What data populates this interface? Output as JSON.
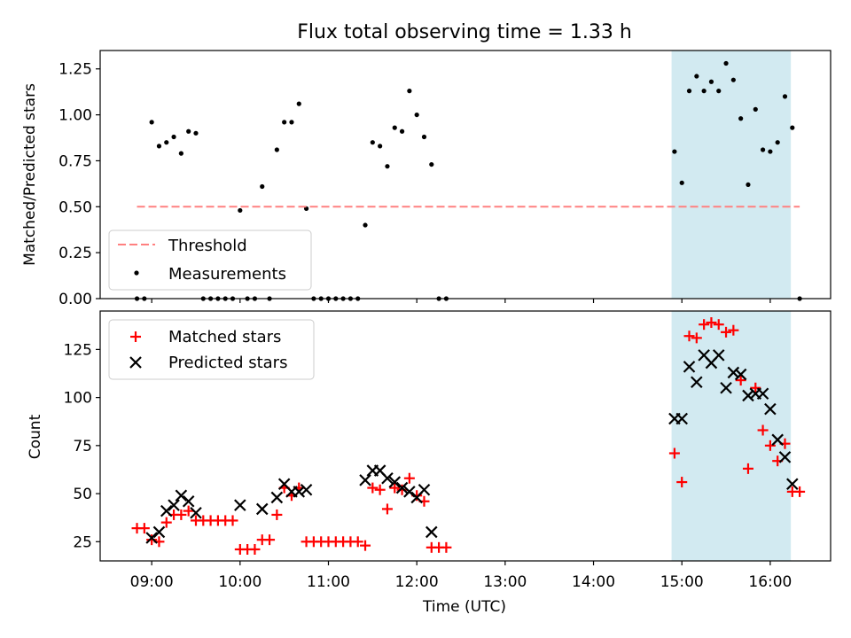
{
  "chart_data": [
    {
      "type": "scatter",
      "title": "Flux total observing time = 1.33 h",
      "xlabel": "",
      "ylabel": "Matched/Predicted stars",
      "ylim": [
        0,
        1.35
      ],
      "xlim": [
        "08:25",
        "16:41"
      ],
      "yticks": [
        "0.00",
        "0.25",
        "0.50",
        "0.75",
        "1.00",
        "1.25"
      ],
      "ytick_values": [
        0,
        0.25,
        0.5,
        0.75,
        1.0,
        1.25
      ],
      "shaded_region": {
        "x_start": "14:53",
        "x_end": "16:14",
        "color": "#add8e6"
      },
      "threshold": {
        "name": "Threshold",
        "y": 0.5,
        "x_start": "08:50",
        "x_end": "16:20",
        "color": "#ff8080"
      },
      "legend": {
        "placement": "lower-left",
        "entries": [
          "Threshold",
          "Measurements"
        ]
      },
      "series": [
        {
          "name": "Measurements",
          "color": "#000000",
          "marker": "dot",
          "points": [
            [
              "08:50",
              0
            ],
            [
              "08:55",
              0
            ],
            [
              "09:00",
              0.96
            ],
            [
              "09:05",
              0.83
            ],
            [
              "09:10",
              0.85
            ],
            [
              "09:15",
              0.88
            ],
            [
              "09:20",
              0.79
            ],
            [
              "09:25",
              0.91
            ],
            [
              "09:30",
              0.9
            ],
            [
              "09:35",
              0
            ],
            [
              "09:40",
              0
            ],
            [
              "09:45",
              0
            ],
            [
              "09:50",
              0
            ],
            [
              "09:55",
              0
            ],
            [
              "10:00",
              0.48
            ],
            [
              "10:05",
              0
            ],
            [
              "10:10",
              0
            ],
            [
              "10:15",
              0.61
            ],
            [
              "10:20",
              0
            ],
            [
              "10:25",
              0.81
            ],
            [
              "10:30",
              0.96
            ],
            [
              "10:35",
              0.96
            ],
            [
              "10:40",
              1.06
            ],
            [
              "10:45",
              0.49
            ],
            [
              "10:50",
              0
            ],
            [
              "10:55",
              0
            ],
            [
              "11:00",
              0
            ],
            [
              "11:05",
              0
            ],
            [
              "11:10",
              0
            ],
            [
              "11:15",
              0
            ],
            [
              "11:20",
              0
            ],
            [
              "11:25",
              0.4
            ],
            [
              "11:30",
              0.85
            ],
            [
              "11:35",
              0.83
            ],
            [
              "11:40",
              0.72
            ],
            [
              "11:45",
              0.93
            ],
            [
              "11:50",
              0.91
            ],
            [
              "11:55",
              1.13
            ],
            [
              "12:00",
              1.0
            ],
            [
              "12:05",
              0.88
            ],
            [
              "12:10",
              0.73
            ],
            [
              "12:15",
              0
            ],
            [
              "12:20",
              0
            ],
            [
              "14:55",
              0.8
            ],
            [
              "15:00",
              0.63
            ],
            [
              "15:05",
              1.13
            ],
            [
              "15:10",
              1.21
            ],
            [
              "15:15",
              1.13
            ],
            [
              "15:20",
              1.18
            ],
            [
              "15:25",
              1.13
            ],
            [
              "15:30",
              1.28
            ],
            [
              "15:35",
              1.19
            ],
            [
              "15:40",
              0.98
            ],
            [
              "15:45",
              0.62
            ],
            [
              "15:50",
              1.03
            ],
            [
              "15:55",
              0.81
            ],
            [
              "16:00",
              0.8
            ],
            [
              "16:05",
              0.85
            ],
            [
              "16:10",
              1.1
            ],
            [
              "16:15",
              0.93
            ],
            [
              "16:20",
              0
            ]
          ]
        }
      ]
    },
    {
      "type": "scatter",
      "title": "",
      "xlabel": "Time (UTC)",
      "ylabel": "Count",
      "ylim": [
        15,
        145
      ],
      "xlim": [
        "08:25",
        "16:41"
      ],
      "xticks": [
        "09:00",
        "10:00",
        "11:00",
        "12:00",
        "13:00",
        "14:00",
        "15:00",
        "16:00"
      ],
      "yticks": [
        "25",
        "50",
        "75",
        "100",
        "125"
      ],
      "ytick_values": [
        25,
        50,
        75,
        100,
        125
      ],
      "shaded_region": {
        "x_start": "14:53",
        "x_end": "16:14",
        "color": "#add8e6"
      },
      "legend": {
        "placement": "upper-left",
        "entries": [
          "Matched stars",
          "Predicted stars"
        ]
      },
      "series": [
        {
          "name": "Matched stars",
          "color": "#ff0000",
          "marker": "plus",
          "points": [
            [
              "08:50",
              32
            ],
            [
              "08:55",
              32
            ],
            [
              "09:00",
              26
            ],
            [
              "09:05",
              25
            ],
            [
              "09:10",
              35
            ],
            [
              "09:15",
              39
            ],
            [
              "09:20",
              39
            ],
            [
              "09:25",
              41
            ],
            [
              "09:30",
              36
            ],
            [
              "09:35",
              36
            ],
            [
              "09:40",
              36
            ],
            [
              "09:45",
              36
            ],
            [
              "09:50",
              36
            ],
            [
              "09:55",
              36
            ],
            [
              "10:00",
              21
            ],
            [
              "10:05",
              21
            ],
            [
              "10:10",
              21
            ],
            [
              "10:15",
              26
            ],
            [
              "10:20",
              26
            ],
            [
              "10:25",
              39
            ],
            [
              "10:30",
              53
            ],
            [
              "10:35",
              49
            ],
            [
              "10:40",
              53
            ],
            [
              "10:45",
              25
            ],
            [
              "10:50",
              25
            ],
            [
              "10:55",
              25
            ],
            [
              "11:00",
              25
            ],
            [
              "11:05",
              25
            ],
            [
              "11:10",
              25
            ],
            [
              "11:15",
              25
            ],
            [
              "11:20",
              25
            ],
            [
              "11:25",
              23
            ],
            [
              "11:30",
              53
            ],
            [
              "11:35",
              52
            ],
            [
              "11:40",
              42
            ],
            [
              "11:45",
              53
            ],
            [
              "11:50",
              52
            ],
            [
              "11:55",
              58
            ],
            [
              "12:00",
              49
            ],
            [
              "12:05",
              46
            ],
            [
              "12:10",
              22
            ],
            [
              "12:15",
              22
            ],
            [
              "12:20",
              22
            ],
            [
              "14:55",
              71
            ],
            [
              "15:00",
              56
            ],
            [
              "15:05",
              132
            ],
            [
              "15:10",
              131
            ],
            [
              "15:15",
              138
            ],
            [
              "15:20",
              139
            ],
            [
              "15:25",
              138
            ],
            [
              "15:30",
              134
            ],
            [
              "15:35",
              135
            ],
            [
              "15:40",
              109
            ],
            [
              "15:45",
              63
            ],
            [
              "15:50",
              105
            ],
            [
              "15:55",
              83
            ],
            [
              "16:00",
              75
            ],
            [
              "16:05",
              67
            ],
            [
              "16:10",
              76
            ],
            [
              "16:15",
              51
            ],
            [
              "16:20",
              51
            ]
          ]
        },
        {
          "name": "Predicted stars",
          "color": "#000000",
          "marker": "x",
          "points": [
            [
              "09:00",
              27
            ],
            [
              "09:05",
              30
            ],
            [
              "09:10",
              41
            ],
            [
              "09:15",
              44
            ],
            [
              "09:20",
              49
            ],
            [
              "09:25",
              46
            ],
            [
              "09:30",
              40
            ],
            [
              "10:00",
              44
            ],
            [
              "10:15",
              42
            ],
            [
              "10:25",
              48
            ],
            [
              "10:30",
              55
            ],
            [
              "10:35",
              51
            ],
            [
              "10:40",
              51
            ],
            [
              "10:45",
              52
            ],
            [
              "11:25",
              57
            ],
            [
              "11:30",
              62
            ],
            [
              "11:35",
              62
            ],
            [
              "11:40",
              58
            ],
            [
              "11:45",
              56
            ],
            [
              "11:50",
              53
            ],
            [
              "11:55",
              51
            ],
            [
              "12:00",
              48
            ],
            [
              "12:05",
              52
            ],
            [
              "12:10",
              30
            ],
            [
              "14:55",
              89
            ],
            [
              "15:00",
              89
            ],
            [
              "15:05",
              116
            ],
            [
              "15:10",
              108
            ],
            [
              "15:15",
              122
            ],
            [
              "15:20",
              118
            ],
            [
              "15:25",
              122
            ],
            [
              "15:30",
              105
            ],
            [
              "15:35",
              113
            ],
            [
              "15:40",
              112
            ],
            [
              "15:45",
              101
            ],
            [
              "15:50",
              102
            ],
            [
              "15:55",
              102
            ],
            [
              "16:00",
              94
            ],
            [
              "16:05",
              78
            ],
            [
              "16:10",
              69
            ],
            [
              "16:15",
              55
            ]
          ]
        }
      ]
    }
  ]
}
